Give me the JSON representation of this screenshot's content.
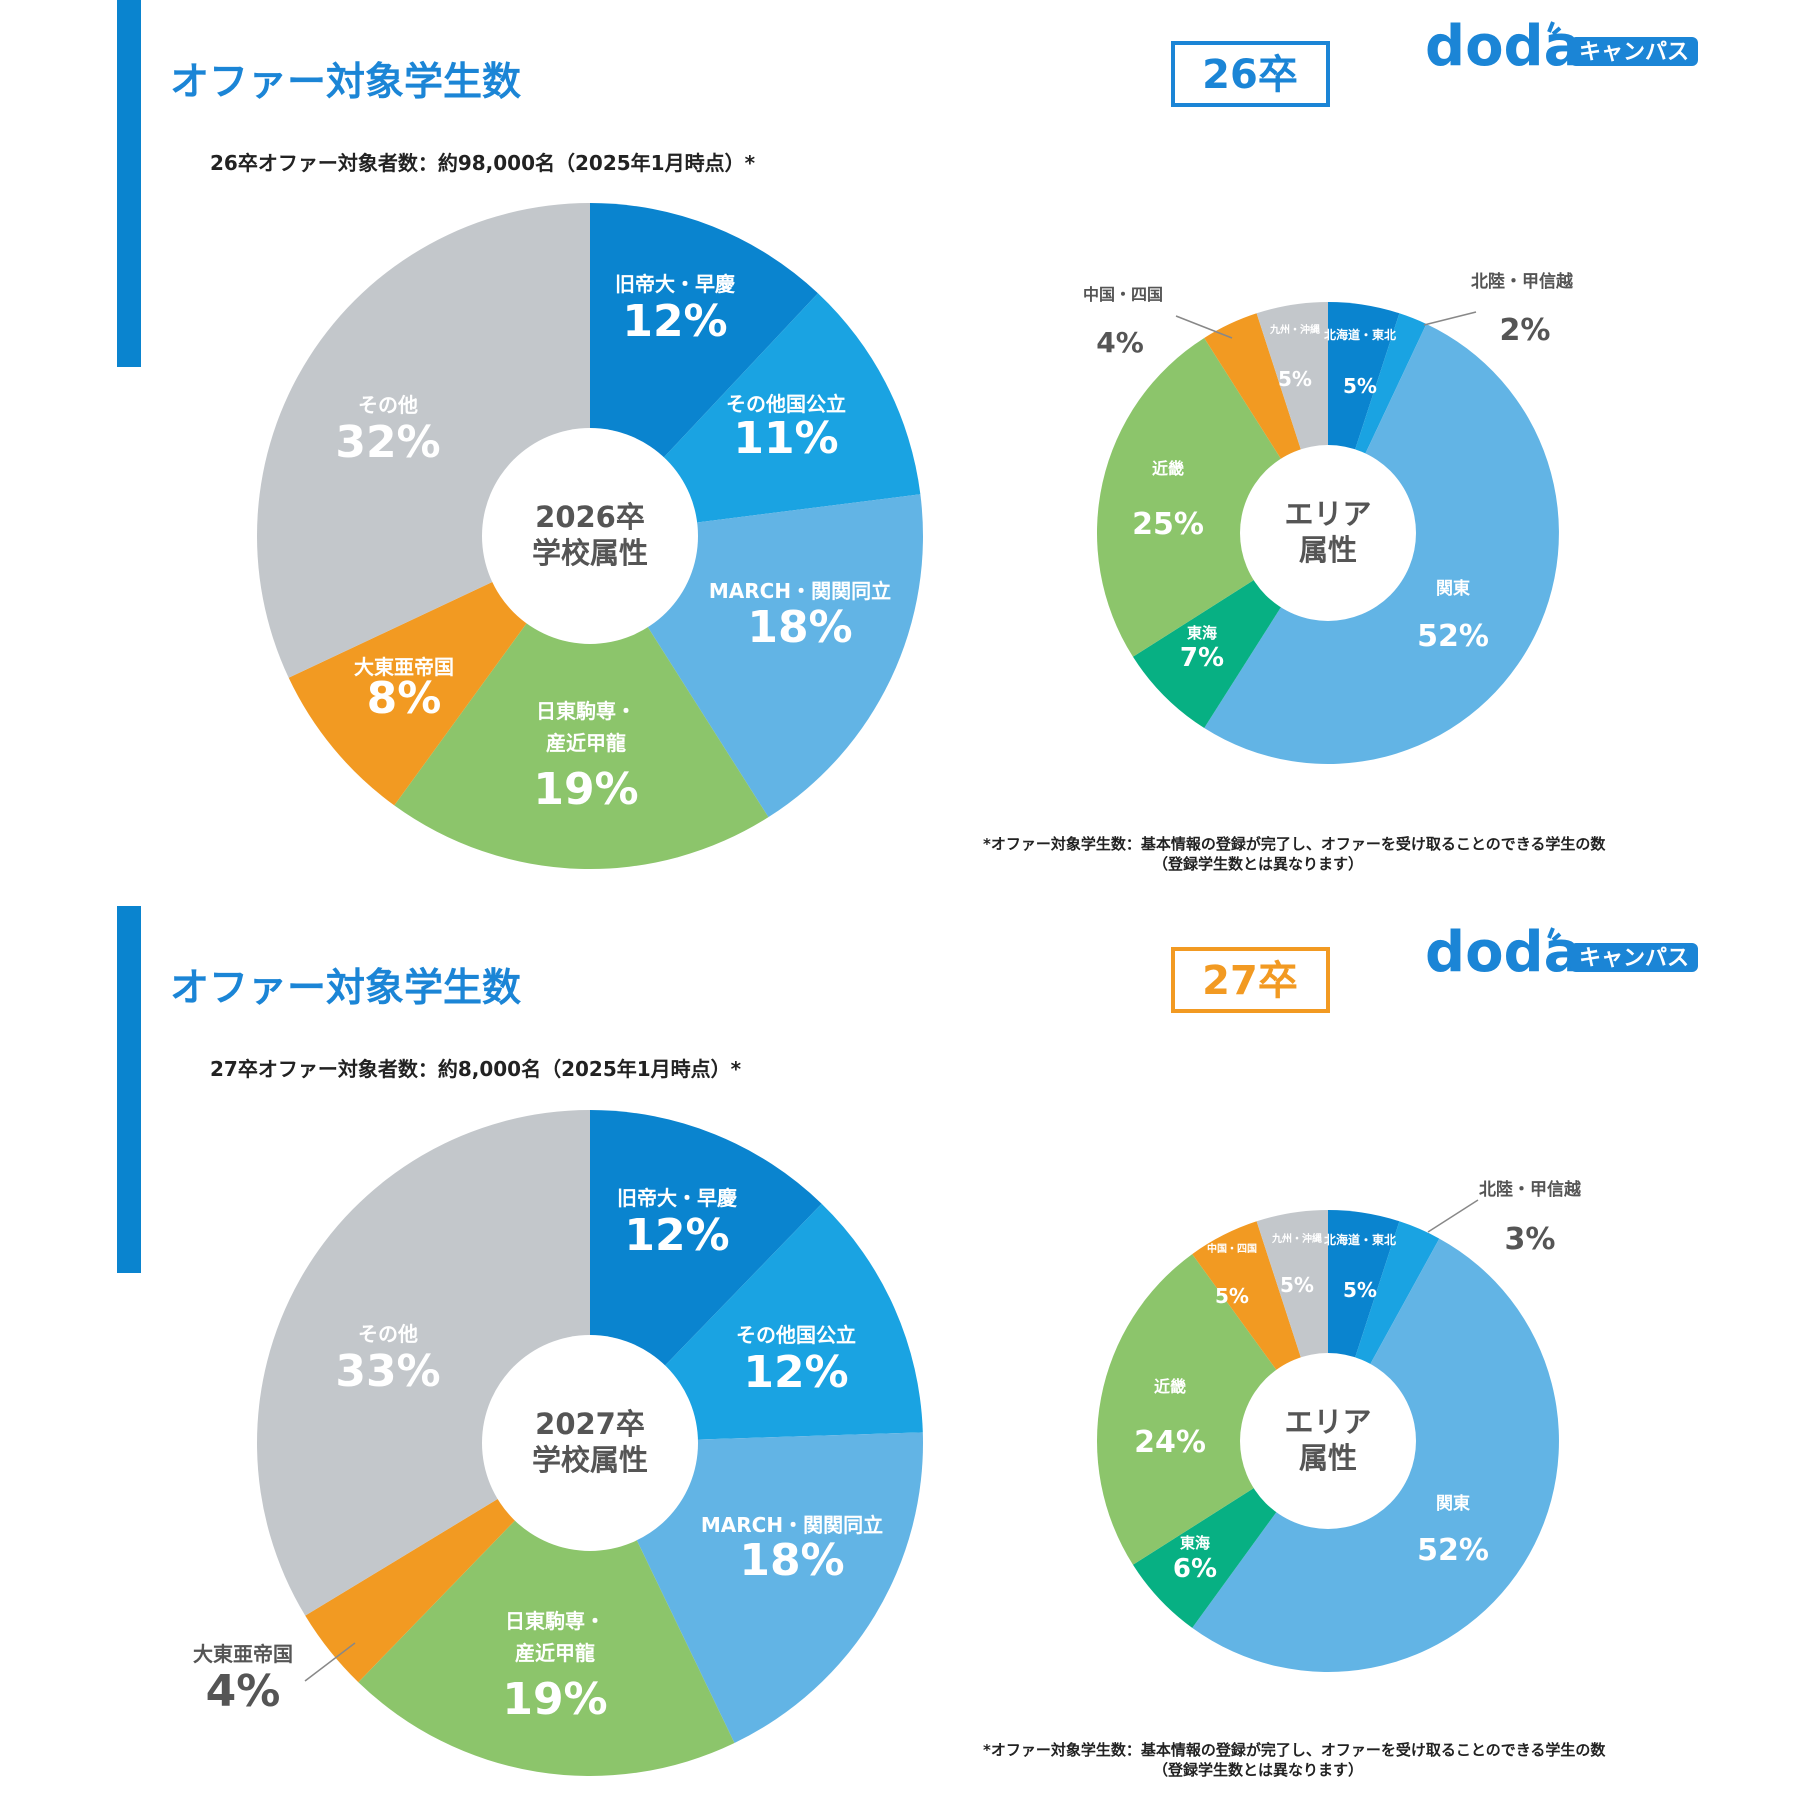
{
  "colors": {
    "accent": "#1b85d6",
    "blue_dark": "#0a84cf",
    "blue_mid": "#1aa3e2",
    "blue_light": "#62b4e5",
    "green": "#8cc56b",
    "orange": "#f29a22",
    "gray": "#c3c7cb",
    "teal": "#07b083",
    "badge_26": "#1b85d6",
    "badge_27": "#f29a22"
  },
  "logo": {
    "brand": "doda",
    "tag": "キャンパス"
  },
  "footnote": {
    "line1": "*オファー対象学生数：基本情報の登録が完了し、オファーを受け取ることのできる学生の数",
    "line2": "（登録学生数とは異なります）"
  },
  "panels": [
    {
      "title": "オファー対象学生数",
      "badge": "26卒",
      "subtitle": "26卒オファー対象者数：約98,000名（2025年1月時点）*"
    },
    {
      "title": "オファー対象学生数",
      "badge": "27卒",
      "subtitle": "27卒オファー対象者数：約8,000名（2025年1月時点）*"
    }
  ],
  "chart_data": [
    {
      "type": "pie",
      "title": "2026卒 学校属性",
      "center_label": [
        "2026卒",
        "学校属性"
      ],
      "categories": [
        "旧帝大・早慶",
        "その他国公立",
        "MARCH・関関同立",
        "日東駒専・産近甲龍",
        "大東亜帝国",
        "その他"
      ],
      "values": [
        12,
        11,
        18,
        19,
        8,
        32
      ],
      "unit": "%"
    },
    {
      "type": "pie",
      "title": "2026卒 エリア属性",
      "center_label": [
        "エリア",
        "属性"
      ],
      "categories": [
        "北海道・東北",
        "北陸・甲信越",
        "関東",
        "東海",
        "近畿",
        "中国・四国",
        "九州・沖縄"
      ],
      "values": [
        5,
        2,
        52,
        7,
        25,
        4,
        5
      ],
      "unit": "%"
    },
    {
      "type": "pie",
      "title": "2027卒 学校属性",
      "center_label": [
        "2027卒",
        "学校属性"
      ],
      "categories": [
        "旧帝大・早慶",
        "その他国公立",
        "MARCH・関関同立",
        "日東駒専・産近甲龍",
        "大東亜帝国",
        "その他"
      ],
      "values": [
        12,
        12,
        18,
        19,
        4,
        33
      ],
      "unit": "%"
    },
    {
      "type": "pie",
      "title": "2027卒 エリア属性",
      "center_label": [
        "エリア",
        "属性"
      ],
      "categories": [
        "北海道・東北",
        "北陸・甲信越",
        "関東",
        "東海",
        "近畿",
        "中国・四国",
        "九州・沖縄"
      ],
      "values": [
        5,
        3,
        52,
        6,
        24,
        5,
        5
      ],
      "unit": "%"
    }
  ]
}
